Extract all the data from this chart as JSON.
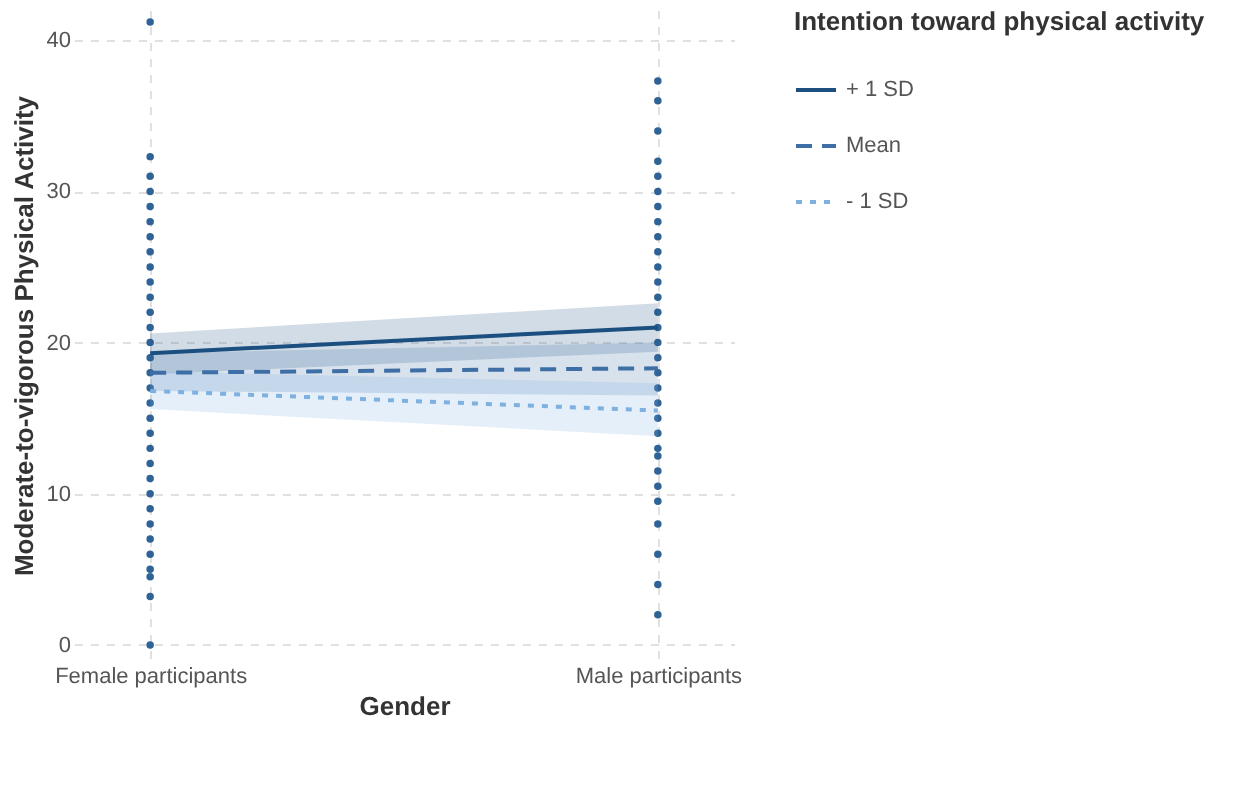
{
  "chart_data": {
    "type": "line",
    "xlabel": "Gender",
    "ylabel": "Moderate-to-vigorous Physical Activity",
    "legend_title": "Intention toward physical activity",
    "categories": [
      "Female participants",
      "Male participants"
    ],
    "ylim": [
      -1,
      42
    ],
    "yticks": [
      0,
      10,
      20,
      30,
      40
    ],
    "grid": true,
    "legend": "right",
    "series": [
      {
        "name": "+ 1 SD",
        "color": "#1b4f80",
        "values": [
          19.3,
          21.0
        ],
        "lower": [
          17.9,
          19.4
        ],
        "upper": [
          20.6,
          22.6
        ],
        "line_style": "solid"
      },
      {
        "name": "Mean",
        "color": "#3d6ea6",
        "values": [
          18.0,
          18.3
        ],
        "lower": [
          16.8,
          16.5
        ],
        "upper": [
          19.3,
          20.0
        ],
        "line_style": "dashed"
      },
      {
        "name": "- 1 SD",
        "color": "#7eb0e0",
        "values": [
          16.8,
          15.5
        ],
        "lower": [
          15.6,
          13.8
        ],
        "upper": [
          18.1,
          17.3
        ],
        "line_style": "dotted"
      },
      {
        "type": "scatter",
        "color": "#2f6396",
        "marker": "circle",
        "x": [
          "Female participants",
          "Female participants",
          "Female participants",
          "Female participants",
          "Female participants",
          "Female participants",
          "Female participants",
          "Female participants",
          "Female participants",
          "Female participants",
          "Female participants",
          "Female participants",
          "Female participants",
          "Female participants",
          "Female participants",
          "Female participants",
          "Female participants",
          "Female participants",
          "Female participants",
          "Female participants",
          "Female participants",
          "Female participants",
          "Female participants",
          "Female participants",
          "Female participants",
          "Female participants",
          "Female participants",
          "Female participants",
          "Female participants",
          "Female participants",
          "Female participants",
          "Female participants",
          "Male participants",
          "Male participants",
          "Male participants",
          "Male participants",
          "Male participants",
          "Male participants",
          "Male participants",
          "Male participants",
          "Male participants",
          "Male participants",
          "Male participants",
          "Male participants",
          "Male participants",
          "Male participants",
          "Male participants",
          "Male participants",
          "Male participants",
          "Male participants",
          "Male participants",
          "Male participants",
          "Male participants",
          "Male participants",
          "Male participants",
          "Male participants",
          "Male participants",
          "Male participants",
          "Male participants",
          "Male participants",
          "Male participants",
          "Male participants",
          "Male participants"
        ],
        "values": [
          0,
          3.2,
          4.5,
          5,
          6,
          7,
          8,
          9,
          10,
          11,
          12,
          13,
          14,
          15,
          16,
          17,
          18,
          19,
          20,
          21,
          22,
          23,
          24,
          25,
          26,
          27,
          28,
          29,
          30,
          31,
          32.3,
          41.2,
          2,
          4,
          6,
          8,
          9.5,
          10.5,
          11.5,
          12.5,
          13,
          14,
          15,
          16,
          17,
          18,
          19,
          20,
          21,
          22,
          23,
          24,
          25,
          26,
          27,
          28,
          29,
          30,
          31,
          32,
          34,
          36,
          37.3
        ]
      }
    ]
  }
}
